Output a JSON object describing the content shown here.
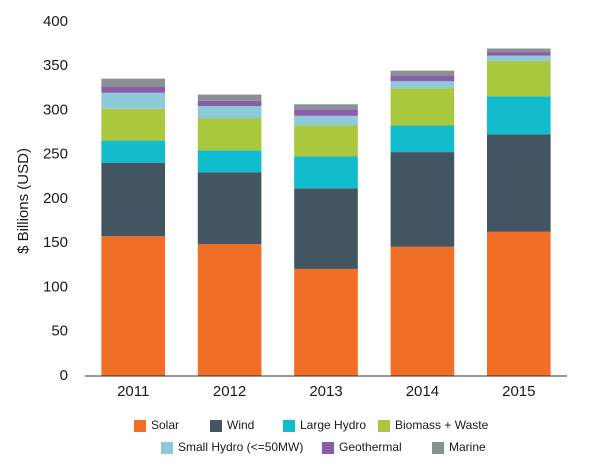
{
  "chart_data": {
    "type": "bar",
    "stacked": true,
    "title": "",
    "xlabel": "",
    "ylabel": "$ Billions (USD)",
    "ylim": [
      0,
      400
    ],
    "yticks": [
      "0",
      "50",
      "100",
      "150",
      "200",
      "250",
      "300",
      "350",
      "400"
    ],
    "grid": false,
    "legend_position": "bottom",
    "categories": [
      "2011",
      "2012",
      "2013",
      "2014",
      "2015"
    ],
    "series": [
      {
        "name": "Solar",
        "color": "#f06e26",
        "values": [
          158,
          149,
          121,
          146,
          163
        ]
      },
      {
        "name": "Wind",
        "color": "#435561",
        "values": [
          83,
          81,
          91,
          107,
          110
        ]
      },
      {
        "name": "Large Hydro",
        "color": "#13bccc",
        "values": [
          25,
          25,
          36,
          30,
          43
        ]
      },
      {
        "name": "Biomass + Waste",
        "color": "#a9c83d",
        "values": [
          36,
          36,
          35,
          42,
          40
        ]
      },
      {
        "name": "Small Hydro (<=50MW)",
        "color": "#8fcad8",
        "values": [
          18,
          14,
          11,
          8,
          6
        ]
      },
      {
        "name": "Geothermal",
        "color": "#8b5da8",
        "values": [
          7,
          6,
          7,
          6,
          4
        ]
      },
      {
        "name": "Marine",
        "color": "#8a9096",
        "values": [
          9,
          7,
          6,
          6,
          4
        ]
      }
    ]
  }
}
